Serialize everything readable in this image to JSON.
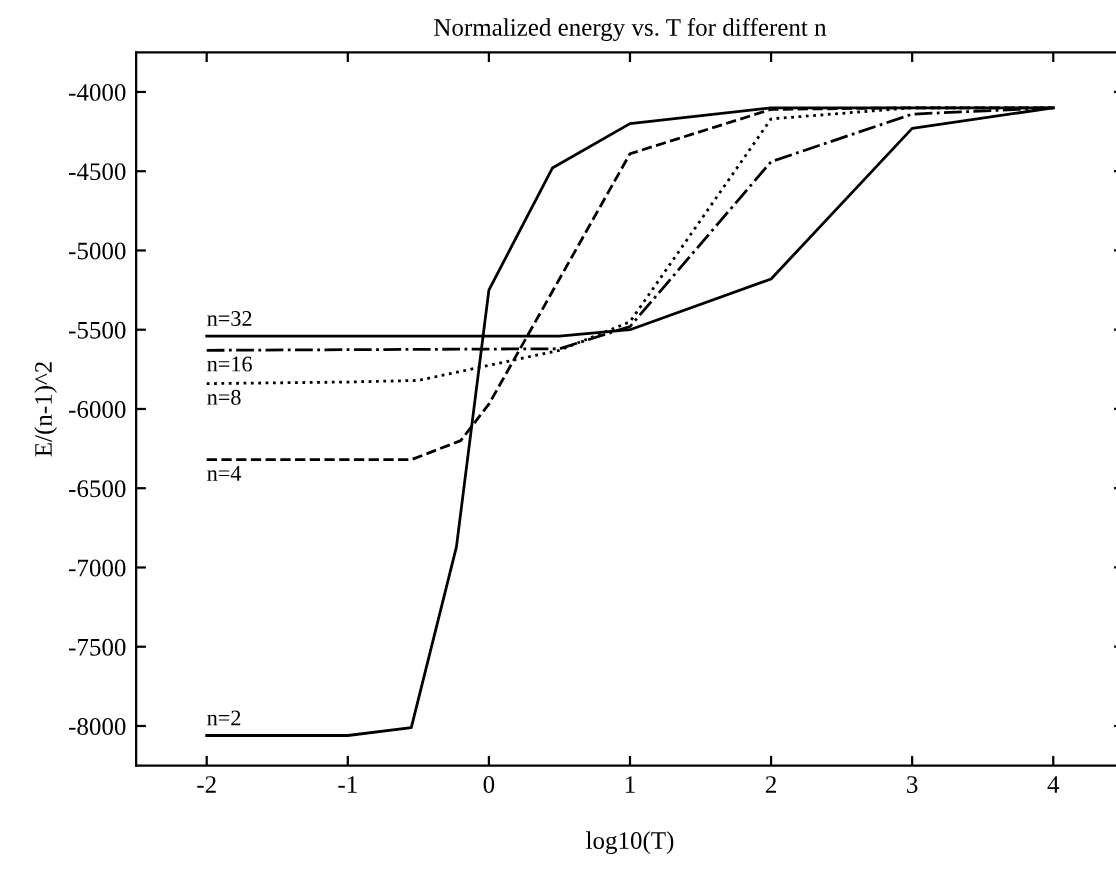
{
  "chart_data": {
    "type": "line",
    "title": "Normalized energy vs. T for different n",
    "xlabel": "log10(T)",
    "ylabel": "E/(n-1)^2",
    "xlim": [
      -2.5,
      4.5
    ],
    "xticks": [
      -2,
      -1,
      0,
      1,
      2,
      3,
      4
    ],
    "ylim": [
      -8250,
      -3750
    ],
    "yticks": [
      -8000,
      -7500,
      -7000,
      -6500,
      -6000,
      -5500,
      -5000,
      -4500,
      -4000
    ],
    "grid": false,
    "legend": false,
    "marker": "none",
    "series": [
      {
        "name": "n=32",
        "color": "#000000",
        "line_style": "solid",
        "x": [
          -2,
          0.5,
          1,
          2,
          3,
          4
        ],
        "values": [
          -5540,
          -5540,
          -5500,
          -5180,
          -4230,
          -4100
        ]
      },
      {
        "name": "n=16",
        "color": "#000000",
        "line_style": "dashdot",
        "x": [
          -2,
          0.5,
          1,
          2,
          3,
          4
        ],
        "values": [
          -5630,
          -5620,
          -5480,
          -4440,
          -4140,
          -4100
        ]
      },
      {
        "name": "n=8",
        "color": "#000000",
        "line_style": "dotted",
        "x": [
          -2,
          -1,
          -0.5,
          0.5,
          1,
          2,
          3,
          4
        ],
        "values": [
          -5840,
          -5830,
          -5820,
          -5630,
          -5450,
          -4170,
          -4100,
          -4100
        ]
      },
      {
        "name": "n=4",
        "color": "#000000",
        "line_style": "dashed",
        "x": [
          -2,
          -0.55,
          -0.2,
          0,
          1,
          2,
          3,
          4
        ],
        "values": [
          -6320,
          -6320,
          -6200,
          -5970,
          -4390,
          -4110,
          -4100,
          -4100
        ]
      },
      {
        "name": "n=2",
        "color": "#000000",
        "line_style": "solid",
        "x": [
          -2,
          -1,
          -0.55,
          -0.23,
          0,
          0.45,
          1,
          2,
          3,
          4
        ],
        "values": [
          -8060,
          -8060,
          -8010,
          -6870,
          -5250,
          -4480,
          -4200,
          -4100,
          -4100,
          -4100
        ]
      }
    ]
  }
}
